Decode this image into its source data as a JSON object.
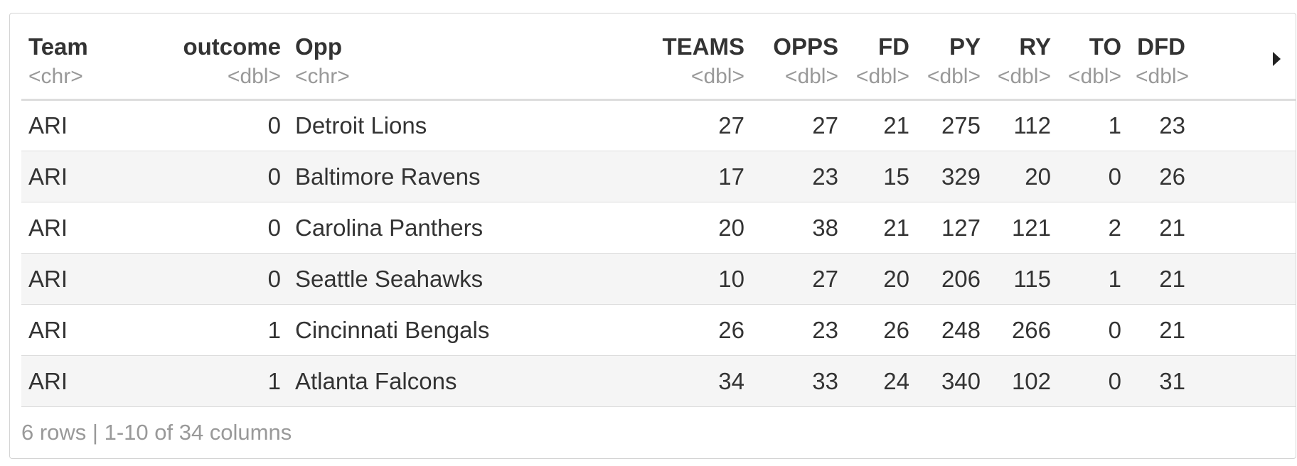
{
  "columns": [
    {
      "name": "Team",
      "type": "<chr>"
    },
    {
      "name": "outcome",
      "type": "<dbl>"
    },
    {
      "name": "Opp",
      "type": "<chr>"
    },
    {
      "name": "TEAMS",
      "type": "<dbl>"
    },
    {
      "name": "OPPS",
      "type": "<dbl>"
    },
    {
      "name": "FD",
      "type": "<dbl>"
    },
    {
      "name": "PY",
      "type": "<dbl>"
    },
    {
      "name": "RY",
      "type": "<dbl>"
    },
    {
      "name": "TO",
      "type": "<dbl>"
    },
    {
      "name": "DFD",
      "type": "<dbl>"
    }
  ],
  "rows": [
    [
      "ARI",
      "0",
      "Detroit Lions",
      "27",
      "27",
      "21",
      "275",
      "112",
      "1",
      "23"
    ],
    [
      "ARI",
      "0",
      "Baltimore Ravens",
      "17",
      "23",
      "15",
      "329",
      "20",
      "0",
      "26"
    ],
    [
      "ARI",
      "0",
      "Carolina Panthers",
      "20",
      "38",
      "21",
      "127",
      "121",
      "2",
      "21"
    ],
    [
      "ARI",
      "0",
      "Seattle Seahawks",
      "10",
      "27",
      "20",
      "206",
      "115",
      "1",
      "21"
    ],
    [
      "ARI",
      "1",
      "Cincinnati Bengals",
      "26",
      "23",
      "26",
      "248",
      "266",
      "0",
      "21"
    ],
    [
      "ARI",
      "1",
      "Atlanta Falcons",
      "34",
      "33",
      "24",
      "340",
      "102",
      "0",
      "31"
    ]
  ],
  "footer": "6 rows | 1-10 of 34 columns",
  "next_columns_icon": "triangle-right-icon"
}
